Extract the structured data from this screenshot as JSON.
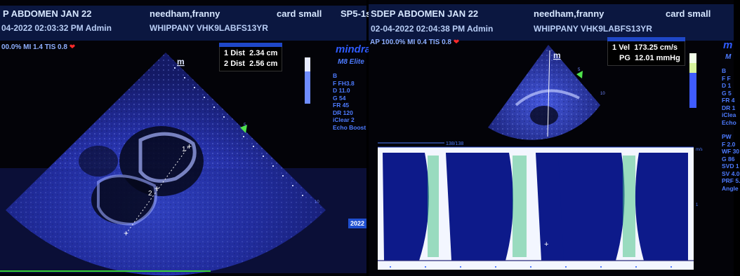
{
  "left": {
    "study": "P ABDOMEN JAN 22",
    "datetime": "04-2022 02:03:32 PM  Admin",
    "patient": "needham,franny",
    "institution": "WHIPPANY VHK9LABFS13YR",
    "preset": "card small",
    "probe": "SP5-1s",
    "power": "00.0%  MI 1.4  TIS 0.8",
    "orientation_marker": "m",
    "measurements": [
      {
        "label": "Dist",
        "value": "2.34 cm",
        "index": "1"
      },
      {
        "label": "Dist",
        "value": "2.56 cm",
        "index": "2"
      }
    ],
    "brand": "mindra",
    "model": "M8 Elite",
    "params": [
      "B",
      "F FH3.8",
      "D 11.0",
      "G 54",
      "FR 45",
      "DR 120",
      "iClear 2",
      "Echo Boost"
    ],
    "depth_label": "10",
    "depth_mark": "5",
    "year_badge": "2022",
    "calipers": [
      "1",
      "2"
    ]
  },
  "right": {
    "study": "SDEP ABDOMEN JAN 22",
    "datetime": "02-04-2022 02:04:38 PM  Admin",
    "patient": "needham,franny",
    "institution": "WHIPPANY VHK9LABFS13YR",
    "preset": "card small",
    "power": "AP 100.0%  MI 0.4  TIS 0.8",
    "orientation_marker": "m",
    "measurements": [
      {
        "label": "Vel",
        "value": "173.25 cm/s",
        "index": "1"
      },
      {
        "label": "PG",
        "value": "12.01 mmHg",
        "index": ""
      }
    ],
    "brand": "m",
    "brand2": "M",
    "params_b": [
      "B",
      "F F",
      "D 1",
      "G 5",
      "FR 4",
      "DR 1",
      "iClea",
      "Echo"
    ],
    "params_pw": [
      "PW",
      "F 2.0",
      "WF 30",
      "G 86",
      "SVD 1",
      "SV 4.0",
      "PRF 5.",
      "Angle"
    ],
    "sector_depth": "10",
    "sector_mark": "5",
    "doppler_header": "138/138",
    "doppler_unit": "m/s",
    "doppler_tick": "1"
  }
}
